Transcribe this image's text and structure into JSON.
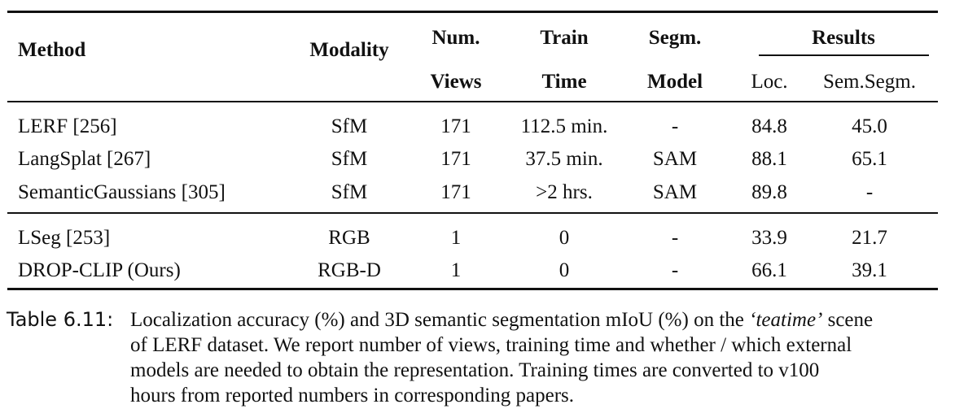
{
  "table": {
    "headers": {
      "method": "Method",
      "modality": "Modality",
      "num_line1": "Num.",
      "num_line2": "Views",
      "train_line1": "Train",
      "train_line2": "Time",
      "segm_line1": "Segm.",
      "segm_line2": "Model",
      "results": "Results",
      "loc": "Loc.",
      "semsegm": "Sem.Segm."
    },
    "rows": [
      {
        "method": "LERF [256]",
        "modality": "SfM",
        "views": "171",
        "time": "112.5 min.",
        "model": "-",
        "loc": "84.8",
        "sem": "45.0"
      },
      {
        "method": "LangSplat [267]",
        "modality": "SfM",
        "views": "171",
        "time": "37.5 min.",
        "model": "SAM",
        "loc": "88.1",
        "sem": "65.1"
      },
      {
        "method": "SemanticGaussians [305]",
        "modality": "SfM",
        "views": "171",
        "time": ">2 hrs.",
        "model": "SAM",
        "loc": "89.8",
        "sem": "-"
      },
      {
        "method": "LSeg [253]",
        "modality": "RGB",
        "views": "1",
        "time": "0",
        "model": "-",
        "loc": "33.9",
        "sem": "21.7"
      },
      {
        "method": "DROP-CLIP (Ours)",
        "modality": "RGB-D",
        "views": "1",
        "time": "0",
        "model": "-",
        "loc": "66.1",
        "sem": "39.1"
      }
    ]
  },
  "caption": {
    "label": "Table 6.11:",
    "line1_a": "Localization accuracy (%) and 3D semantic segmentation mIoU (%) on the ",
    "line1_em": "‘teatime’",
    "line1_b": " scene",
    "line2": "of LERF dataset. We report number of views, training time and whether / which external",
    "line3": "models are needed to obtain the representation. Training times are converted to v100",
    "line4": "hours from reported numbers in corresponding papers."
  }
}
